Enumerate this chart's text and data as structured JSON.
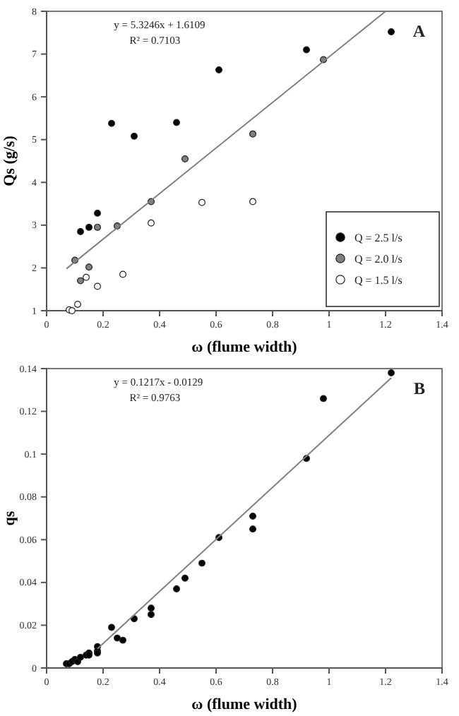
{
  "chart_data": [
    {
      "type": "scatter",
      "xlabel": "ω (flume width)",
      "ylabel": "Qs (g/s)",
      "xlim": [
        0,
        1.4
      ],
      "xticks": [
        0,
        0.2,
        0.4,
        0.6,
        0.8,
        1,
        1.2,
        1.4
      ],
      "ylim": [
        1,
        8
      ],
      "yticks": [
        1,
        2,
        3,
        4,
        5,
        6,
        7,
        8
      ],
      "legend": "bottom right",
      "marker": "circle",
      "annotations": [
        "y = 5.3246x + 1.6109",
        "R² = 0.7103",
        "A"
      ],
      "series": [
        {
          "name": "Q = 2.5 l/s",
          "color": "#000000",
          "x": [
            0.12,
            0.15,
            0.18,
            0.23,
            0.31,
            0.46,
            0.61,
            0.92,
            1.22
          ],
          "values": [
            2.85,
            2.95,
            3.28,
            5.38,
            5.08,
            5.4,
            6.63,
            7.1,
            7.52
          ]
        },
        {
          "name": "Q = 2.0 l/s",
          "color": "#808080",
          "x": [
            0.1,
            0.12,
            0.15,
            0.18,
            0.25,
            0.37,
            0.49,
            0.73,
            0.98
          ],
          "values": [
            2.18,
            1.7,
            2.02,
            2.95,
            2.98,
            3.55,
            4.55,
            5.13,
            6.87
          ]
        },
        {
          "name": "Q = 1.5 l/s",
          "color": "#ffffff",
          "x": [
            0.08,
            0.09,
            0.11,
            0.14,
            0.18,
            0.27,
            0.37,
            0.55,
            0.73
          ],
          "values": [
            1.02,
            1.0,
            1.15,
            1.78,
            1.57,
            1.85,
            3.05,
            3.53,
            3.55
          ]
        },
        {
          "type": "line",
          "marker": "none",
          "color": "#808080",
          "x": [
            0.07,
            1.2
          ],
          "values": [
            1.98,
            8.0
          ]
        }
      ]
    },
    {
      "type": "scatter",
      "xlabel": "ω (flume width)",
      "ylabel": "qs",
      "xlim": [
        0,
        1.4
      ],
      "xticks": [
        0,
        0.2,
        0.4,
        0.6,
        0.8,
        1,
        1.2,
        1.4
      ],
      "ylim": [
        0,
        0.14
      ],
      "yticks": [
        0,
        0.02,
        0.04,
        0.06,
        0.08,
        0.1,
        0.12,
        0.14
      ],
      "marker": "circle",
      "annotations": [
        "y = 0.1217x - 0.0129",
        "R² = 0.9763",
        "B"
      ],
      "series": [
        {
          "color": "#000000",
          "x": [
            0.07,
            0.08,
            0.09,
            0.1,
            0.11,
            0.12,
            0.14,
            0.15,
            0.15,
            0.18,
            0.18,
            0.18,
            0.23,
            0.25,
            0.27,
            0.31,
            0.37,
            0.37,
            0.46,
            0.49,
            0.55,
            0.61,
            0.73,
            0.73,
            0.92,
            0.98,
            1.22
          ],
          "values": [
            0.002,
            0.002,
            0.003,
            0.004,
            0.003,
            0.005,
            0.006,
            0.007,
            0.006,
            0.01,
            0.008,
            0.007,
            0.019,
            0.014,
            0.013,
            0.023,
            0.028,
            0.025,
            0.037,
            0.042,
            0.049,
            0.061,
            0.071,
            0.065,
            0.098,
            0.126,
            0.138
          ]
        },
        {
          "type": "line",
          "marker": "none",
          "color": "#808080",
          "x": [
            0.18,
            1.22
          ],
          "values": [
            0.009,
            0.1356
          ]
        }
      ]
    }
  ]
}
